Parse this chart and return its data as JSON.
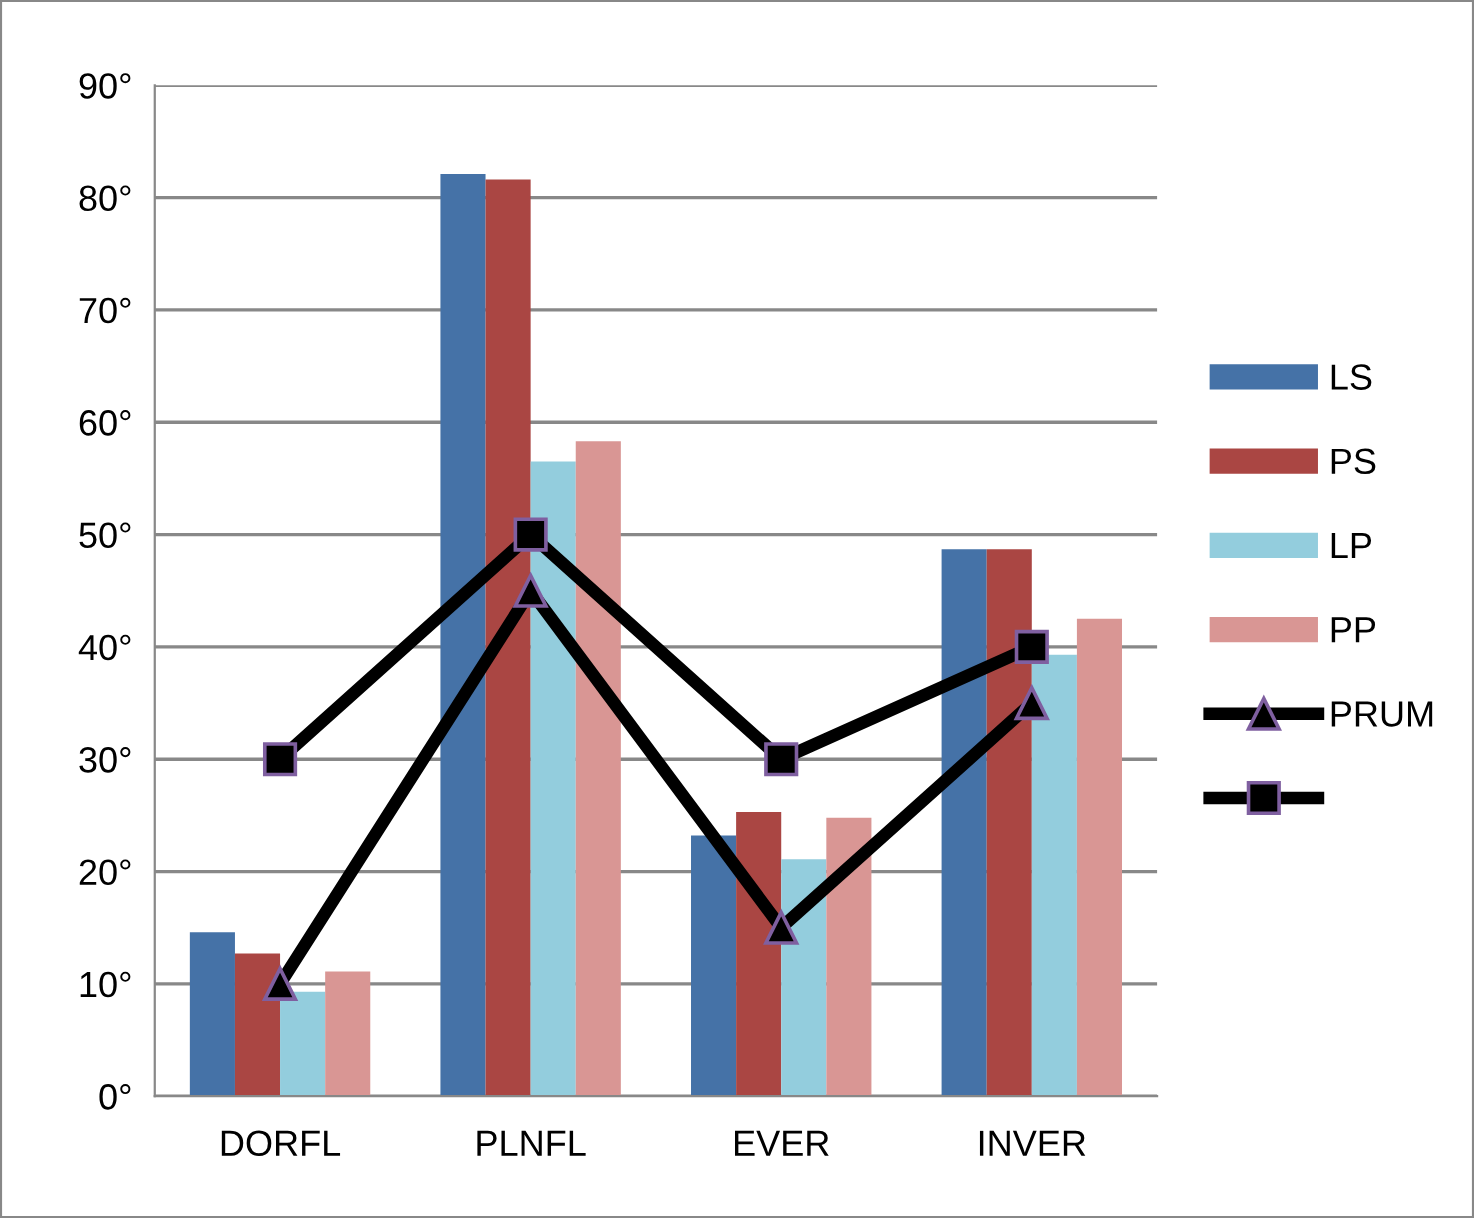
{
  "chart_data": {
    "type": "bar",
    "categories": [
      "DORFL",
      "PLNFL",
      "EVER",
      "INVER"
    ],
    "series": [
      {
        "name": "LS",
        "color": "#4572a7",
        "values": [
          14.6,
          82.1,
          23.2,
          48.7
        ]
      },
      {
        "name": "PS",
        "color": "#aa4643",
        "values": [
          12.7,
          81.6,
          25.3,
          48.7
        ]
      },
      {
        "name": "LP",
        "color": "#93cddd",
        "values": [
          9.3,
          56.5,
          21.1,
          39.3
        ]
      },
      {
        "name": "PP",
        "color": "#d99694",
        "values": [
          11.1,
          58.3,
          24.8,
          42.5
        ]
      },
      {
        "name": "PRUM",
        "type": "line",
        "color": "#000000",
        "marker": "triangle",
        "values": [
          10,
          45,
          15,
          35
        ]
      },
      {
        "type": "line",
        "color": "#000000",
        "marker": "square",
        "values": [
          30,
          50,
          30,
          40
        ]
      }
    ],
    "ylim": [
      0,
      90
    ],
    "yticks": [
      {
        "value": 0,
        "label": "0°"
      },
      {
        "value": 10,
        "label": "10°"
      },
      {
        "value": 20,
        "label": "20°"
      },
      {
        "value": 30,
        "label": "30°"
      },
      {
        "value": 40,
        "label": "40°"
      },
      {
        "value": 50,
        "label": "50°"
      },
      {
        "value": 60,
        "label": "60°"
      },
      {
        "value": 70,
        "label": "70°"
      },
      {
        "value": 80,
        "label": "80°"
      },
      {
        "value": 90,
        "label": "90°"
      }
    ],
    "grid": "y",
    "legend": "right"
  }
}
